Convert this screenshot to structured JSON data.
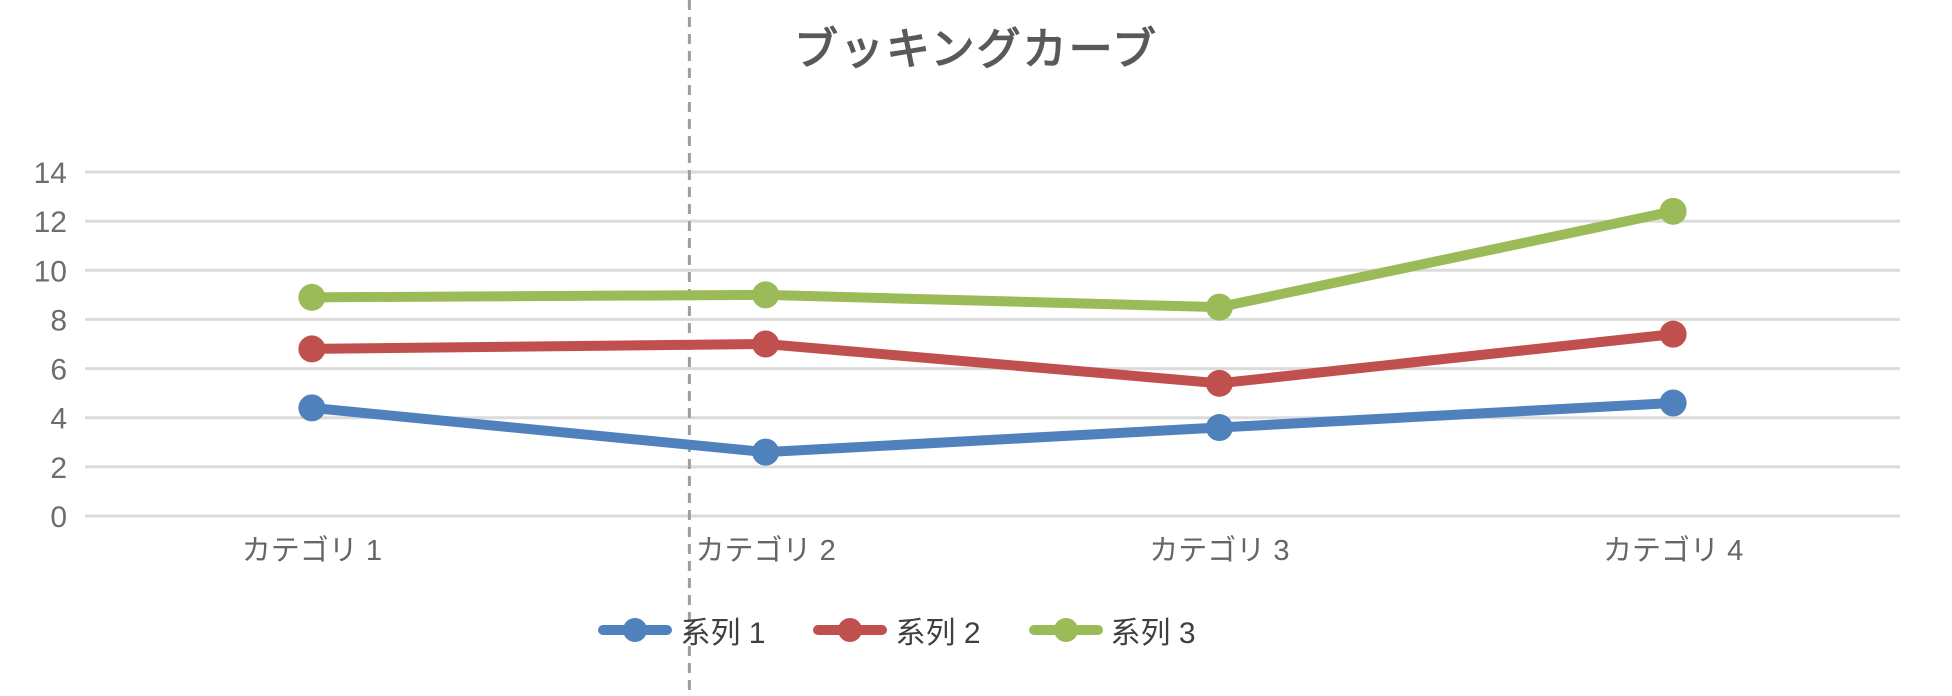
{
  "chart_data": {
    "type": "line",
    "title": "ブッキングカーブ",
    "categories": [
      "カテゴリ 1",
      "カテゴリ 2",
      "カテゴリ 3",
      "カテゴリ 4"
    ],
    "series": [
      {
        "name": "系列 1",
        "color": "#4F81BD",
        "values": [
          4.4,
          2.6,
          3.6,
          4.6
        ]
      },
      {
        "name": "系列 2",
        "color": "#C0504D",
        "values": [
          6.8,
          7.0,
          5.4,
          7.4
        ]
      },
      {
        "name": "系列 3",
        "color": "#9BBB59",
        "values": [
          8.9,
          9.0,
          8.5,
          12.4
        ]
      }
    ],
    "ylim": [
      0,
      14
    ],
    "yticks": [
      0,
      2,
      4,
      6,
      8,
      10,
      12,
      14
    ],
    "xlabel": "",
    "ylabel": "",
    "grid": "horizontal",
    "legend_position": "bottom",
    "marker": "circle",
    "reference_line": {
      "orientation": "vertical",
      "style": "dashed",
      "color": "#9e9e9e",
      "x_fraction_of_plot": 0.333
    }
  }
}
